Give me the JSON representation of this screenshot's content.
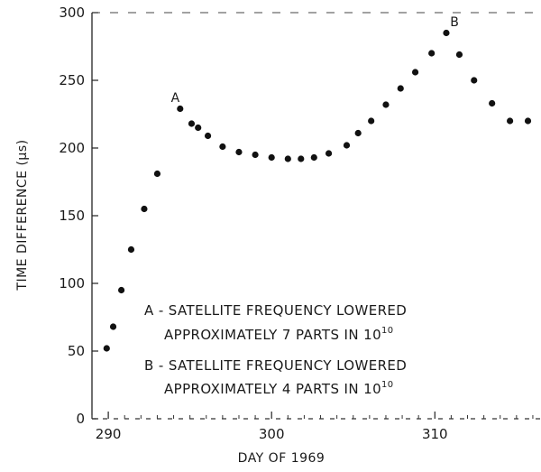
{
  "chart_data": {
    "type": "scatter",
    "xlabel": "DAY OF 1969",
    "ylabel": "TIME DIFFERENCE (μs)",
    "xlim": [
      289,
      316.5
    ],
    "ylim": [
      0,
      300
    ],
    "x_ticks": [
      290,
      300,
      310
    ],
    "y_ticks": [
      0,
      50,
      100,
      150,
      200,
      250,
      300
    ],
    "grid": false,
    "series": [
      {
        "x": [
          289.9,
          290.3,
          290.8,
          291.4,
          292.2,
          293.0,
          294.4,
          295.1,
          295.5,
          296.1,
          297.0,
          298.0,
          299.0,
          300.0,
          301.0,
          301.8,
          302.6,
          303.5,
          304.6,
          305.3,
          306.1,
          307.0,
          307.9,
          308.8,
          309.8,
          310.7,
          311.5,
          312.4,
          313.5,
          314.6,
          315.7
        ],
        "y": [
          52,
          68,
          95,
          125,
          155,
          181,
          229,
          218,
          215,
          209,
          201,
          197,
          195,
          193,
          192,
          192,
          193,
          196,
          202,
          211,
          220,
          232,
          244,
          256,
          270,
          285,
          269,
          250,
          233,
          220,
          220
        ]
      }
    ],
    "point_labels": [
      {
        "text": "A",
        "x": 294.1,
        "y": 234
      },
      {
        "text": "B",
        "x": 311.2,
        "y": 290
      }
    ],
    "annotations": [
      {
        "lines": [
          {
            "text": "A - SATELLITE FREQUENCY LOWERED",
            "sup": ""
          },
          {
            "text": "APPROXIMATELY 7 PARTS IN 10",
            "sup": "10"
          }
        ]
      },
      {
        "lines": [
          {
            "text": "B - SATELLITE FREQUENCY LOWERED",
            "sup": ""
          },
          {
            "text": "APPROXIMATELY 4 PARTS IN 10",
            "sup": "10"
          }
        ]
      }
    ]
  }
}
